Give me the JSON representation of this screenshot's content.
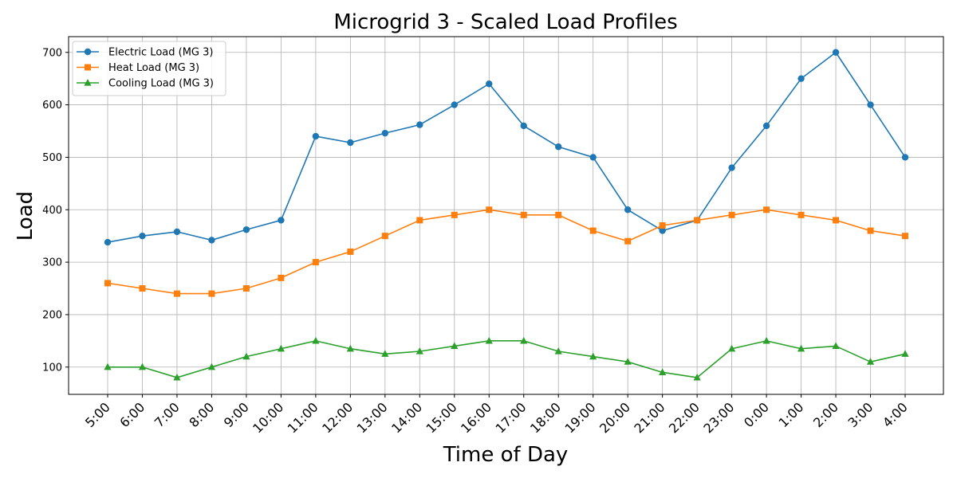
{
  "chart_data": {
    "type": "line",
    "title": "Microgrid 3 - Scaled Load Profiles",
    "xlabel": "Time of Day",
    "ylabel": "Load",
    "categories": [
      "5:00",
      "6:00",
      "7:00",
      "8:00",
      "9:00",
      "10:00",
      "11:00",
      "12:00",
      "13:00",
      "14:00",
      "15:00",
      "16:00",
      "17:00",
      "18:00",
      "19:00",
      "20:00",
      "21:00",
      "22:00",
      "23:00",
      "0:00",
      "1:00",
      "2:00",
      "3:00",
      "4:00"
    ],
    "ylim": [
      48,
      730
    ],
    "yticks": [
      100,
      200,
      300,
      400,
      500,
      600,
      700
    ],
    "grid": true,
    "legend_position": "top-left",
    "series": [
      {
        "name": "Electric Load (MG 3)",
        "color": "#1f77b4",
        "marker": "circle",
        "values": [
          338,
          350,
          358,
          342,
          362,
          380,
          540,
          528,
          546,
          562,
          600,
          640,
          560,
          520,
          500,
          400,
          360,
          380,
          480,
          560,
          650,
          700,
          600,
          500
        ]
      },
      {
        "name": "Heat Load (MG 3)",
        "color": "#ff7f0e",
        "marker": "square",
        "values": [
          260,
          250,
          240,
          240,
          250,
          270,
          300,
          320,
          350,
          380,
          390,
          400,
          390,
          390,
          360,
          340,
          370,
          380,
          390,
          400,
          390,
          380,
          360,
          350
        ]
      },
      {
        "name": "Cooling Load (MG 3)",
        "color": "#2ca02c",
        "marker": "triangle",
        "values": [
          100,
          100,
          80,
          100,
          120,
          135,
          150,
          135,
          125,
          130,
          140,
          150,
          150,
          130,
          120,
          110,
          90,
          80,
          135,
          150,
          135,
          140,
          110,
          125
        ]
      }
    ]
  }
}
